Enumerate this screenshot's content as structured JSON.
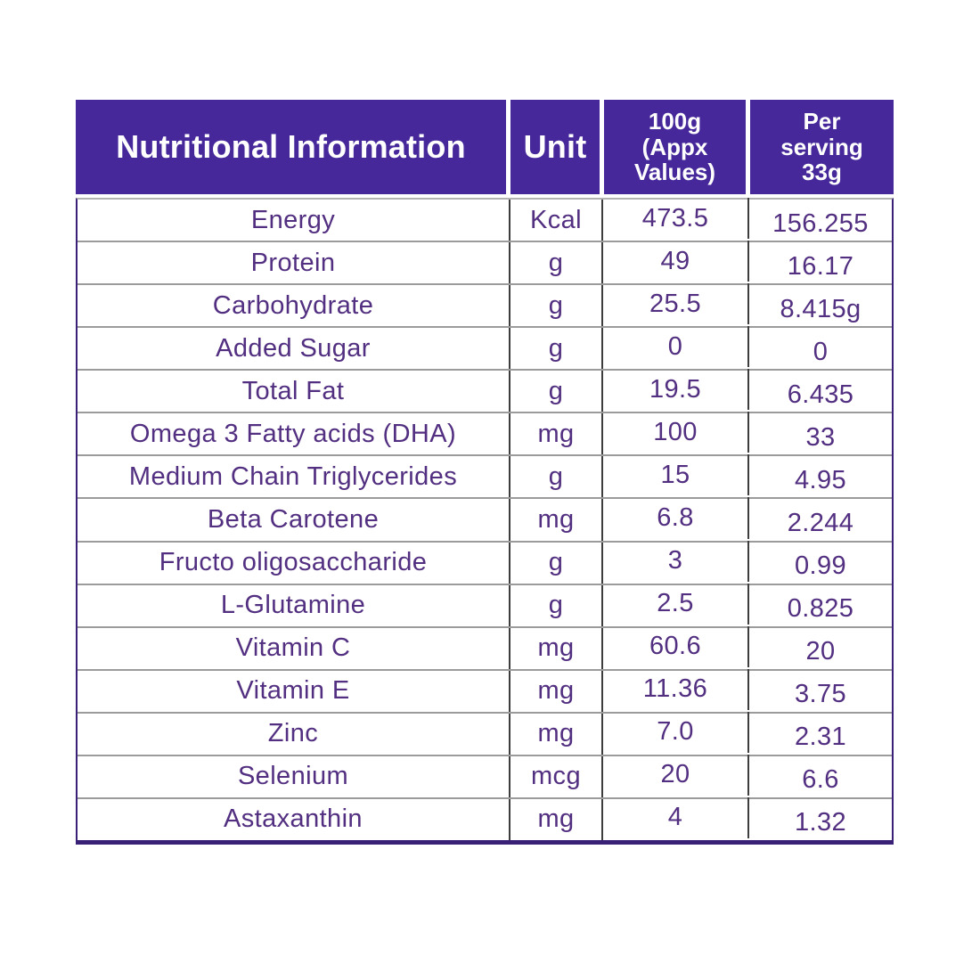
{
  "colors": {
    "header_bg": "#46289b",
    "outer_border": "#3a2077",
    "body_text": "#522f80",
    "row_line": "#9b9b9b",
    "column_line": "#3d3d3d"
  },
  "table": {
    "header": {
      "nutritional_information": "Nutritional Information",
      "unit": "Unit",
      "per_100g": "100g\n(Appx\nValues)",
      "per_serving": "Per\nserving\n33g"
    },
    "rows": [
      {
        "name": "Energy",
        "unit": "Kcal",
        "per_100g": "473.5",
        "per_serving": "156.255"
      },
      {
        "name": "Protein",
        "unit": "g",
        "per_100g": "49",
        "per_serving": "16.17"
      },
      {
        "name": "Carbohydrate",
        "unit": "g",
        "per_100g": "25.5",
        "per_serving": "8.415g"
      },
      {
        "name": "Added Sugar",
        "unit": "g",
        "per_100g": "0",
        "per_serving": "0"
      },
      {
        "name": "Total Fat",
        "unit": "g",
        "per_100g": "19.5",
        "per_serving": "6.435"
      },
      {
        "name": "Omega 3 Fatty acids (DHA)",
        "unit": "mg",
        "per_100g": "100",
        "per_serving": "33"
      },
      {
        "name": "Medium Chain Triglycerides",
        "unit": "g",
        "per_100g": "15",
        "per_serving": "4.95"
      },
      {
        "name": "Beta Carotene",
        "unit": "mg",
        "per_100g": "6.8",
        "per_serving": "2.244"
      },
      {
        "name": "Fructo oligosaccharide",
        "unit": "g",
        "per_100g": "3",
        "per_serving": "0.99"
      },
      {
        "name": "L-Glutamine",
        "unit": "g",
        "per_100g": "2.5",
        "per_serving": "0.825"
      },
      {
        "name": "Vitamin C",
        "unit": "mg",
        "per_100g": "60.6",
        "per_serving": "20"
      },
      {
        "name": "Vitamin E",
        "unit": "mg",
        "per_100g": "11.36",
        "per_serving": "3.75"
      },
      {
        "name": "Zinc",
        "unit": "mg",
        "per_100g": "7.0",
        "per_serving": "2.31"
      },
      {
        "name": "Selenium",
        "unit": "mcg",
        "per_100g": "20",
        "per_serving": "6.6"
      },
      {
        "name": "Astaxanthin",
        "unit": "mg",
        "per_100g": "4",
        "per_serving": "1.32"
      }
    ]
  }
}
